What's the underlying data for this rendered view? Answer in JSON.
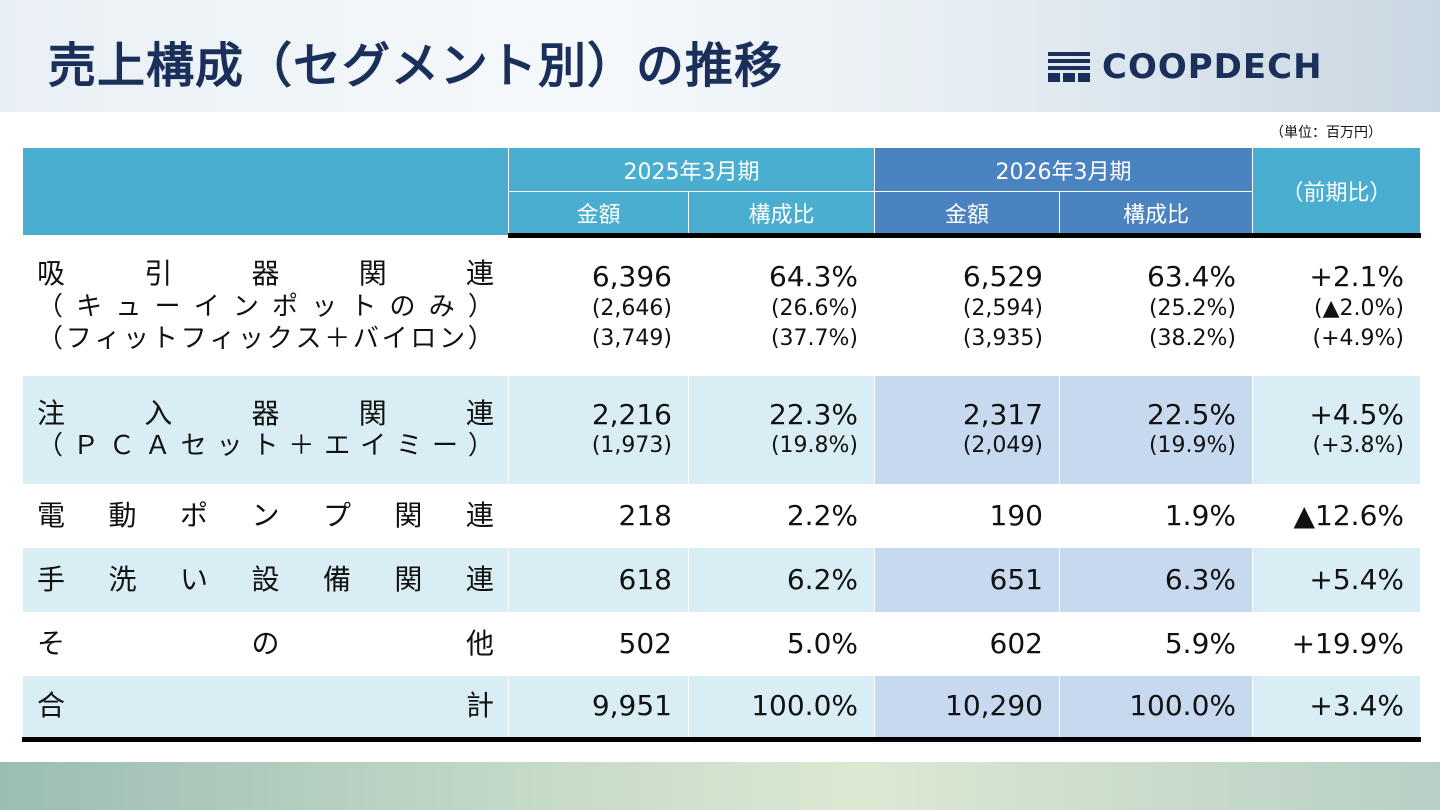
{
  "title": "売上構成（セグメント別）の推移",
  "logo_text": "COOPDECH",
  "unit": "（単位：百万円）",
  "colors": {
    "header_fy2025": "#4aaed0",
    "header_fy2026": "#4b82c0",
    "row_stripe": "#d8edf4",
    "row_highlight": "#c6d9ef",
    "title": "#1a2f5a"
  },
  "headers": {
    "fy2025": "2025年3月期",
    "fy2026": "2026年3月期",
    "amount": "金額",
    "ratio": "構成比",
    "yoy": "（前期比）"
  },
  "rows": [
    {
      "label": [
        "吸",
        "引",
        "器",
        "関",
        "連"
      ],
      "sub_labels": [
        [
          "（",
          "キ",
          "ュ",
          "ー",
          "イ",
          "ン",
          "ポ",
          "ッ",
          "ト",
          "の",
          "み",
          "）"
        ],
        [
          "（",
          "フ",
          "ィ",
          "ッ",
          "ト",
          "フ",
          "ィ",
          "ッ",
          "ク",
          "ス",
          "＋",
          "バ",
          "イ",
          "ロ",
          "ン",
          "）"
        ]
      ],
      "amt2025": "6,396",
      "amt2025_sub": [
        "(2,646)",
        "(3,749)"
      ],
      "ratio2025": "64.3%",
      "ratio2025_sub": [
        "(26.6%)",
        "(37.7%)"
      ],
      "amt2026": "6,529",
      "amt2026_sub": [
        "(2,594)",
        "(3,935)"
      ],
      "ratio2026": "63.4%",
      "ratio2026_sub": [
        "(25.2%)",
        "(38.2%)"
      ],
      "yoy": "+2.1%",
      "yoy_sub": [
        "(▲2.0%)",
        "(+4.9%)"
      ]
    },
    {
      "label": [
        "注",
        "入",
        "器",
        "関",
        "連"
      ],
      "sub_labels": [
        [
          "（",
          "Ｐ",
          "Ｃ",
          "Ａ",
          "セ",
          "ッ",
          "ト",
          "＋",
          "エ",
          "イ",
          "ミ",
          "ー",
          "）"
        ]
      ],
      "amt2025": "2,216",
      "amt2025_sub": [
        "(1,973)"
      ],
      "ratio2025": "22.3%",
      "ratio2025_sub": [
        "(19.8%)"
      ],
      "amt2026": "2,317",
      "amt2026_sub": [
        "(2,049)"
      ],
      "ratio2026": "22.5%",
      "ratio2026_sub": [
        "(19.9%)"
      ],
      "yoy": "+4.5%",
      "yoy_sub": [
        "(+3.8%)"
      ]
    },
    {
      "label": [
        "電",
        "動",
        "ポ",
        "ン",
        "プ",
        "関",
        "連"
      ],
      "amt2025": "218",
      "ratio2025": "2.2%",
      "amt2026": "190",
      "ratio2026": "1.9%",
      "yoy": "▲12.6%"
    },
    {
      "label": [
        "手",
        "洗",
        "い",
        "設",
        "備",
        "関",
        "連"
      ],
      "amt2025": "618",
      "ratio2025": "6.2%",
      "amt2026": "651",
      "ratio2026": "6.3%",
      "yoy": "+5.4%"
    },
    {
      "label": [
        "そ",
        "の",
        "他"
      ],
      "amt2025": "502",
      "ratio2025": "5.0%",
      "amt2026": "602",
      "ratio2026": "5.9%",
      "yoy": "+19.9%"
    },
    {
      "label": [
        "合",
        "計"
      ],
      "amt2025": "9,951",
      "ratio2025": "100.0%",
      "amt2026": "10,290",
      "ratio2026": "100.0%",
      "yoy": "+3.4%"
    }
  ]
}
